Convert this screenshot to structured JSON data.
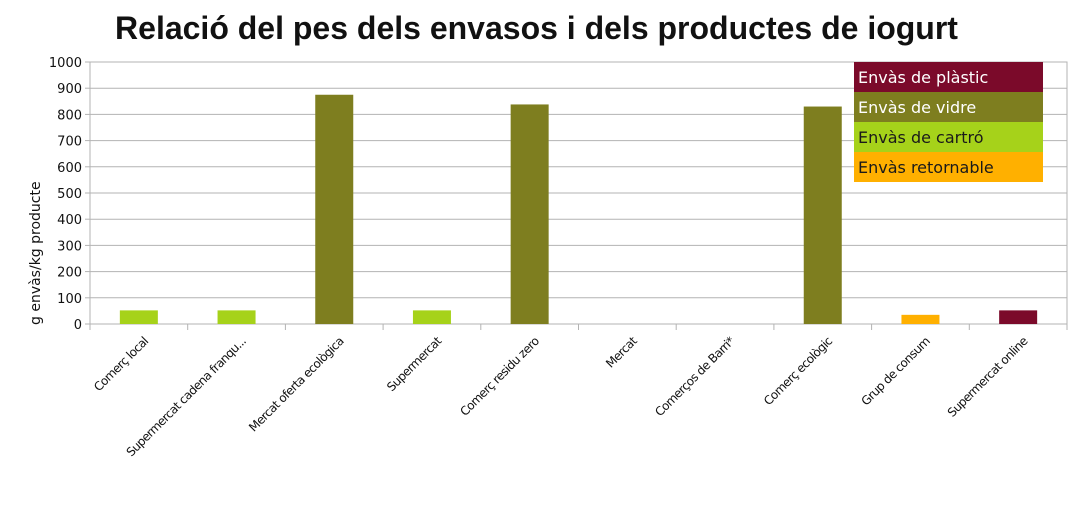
{
  "chart_data": {
    "type": "bar",
    "title": "Relació del pes dels envasos i dels productes de iogurt",
    "xlabel": "",
    "ylabel": "g envàs/kg producte",
    "ylim": [
      0,
      1000
    ],
    "yticks": [
      "0",
      "100",
      "200",
      "300",
      "400",
      "500",
      "600",
      "700",
      "800",
      "900",
      "1000"
    ],
    "grid": true,
    "legend_position": "top-right",
    "categories": [
      "Comerç local",
      "Supermercat cadena franqu...",
      "Mercat oferta ecològica",
      "Supermercat",
      "Comerç residu zero",
      "Mercat",
      "Comerços de Barri*",
      "Comerç ecològic",
      "Grup de consum",
      "Supermercat online"
    ],
    "series": [
      {
        "name": "Envàs de plàstic",
        "color": "#7b0a2a",
        "values": [
          null,
          null,
          null,
          null,
          null,
          null,
          null,
          null,
          null,
          52
        ]
      },
      {
        "name": "Envàs de vidre",
        "color": "#7e7e1f",
        "values": [
          null,
          null,
          875,
          null,
          838,
          null,
          null,
          830,
          null,
          null
        ]
      },
      {
        "name": "Envàs de cartró",
        "color": "#a6d21a",
        "values": [
          52,
          52,
          null,
          52,
          null,
          null,
          null,
          null,
          null,
          null
        ]
      },
      {
        "name": "Envàs retornable",
        "color": "#ffb000",
        "values": [
          null,
          null,
          null,
          null,
          null,
          null,
          null,
          null,
          35,
          null
        ]
      }
    ]
  }
}
